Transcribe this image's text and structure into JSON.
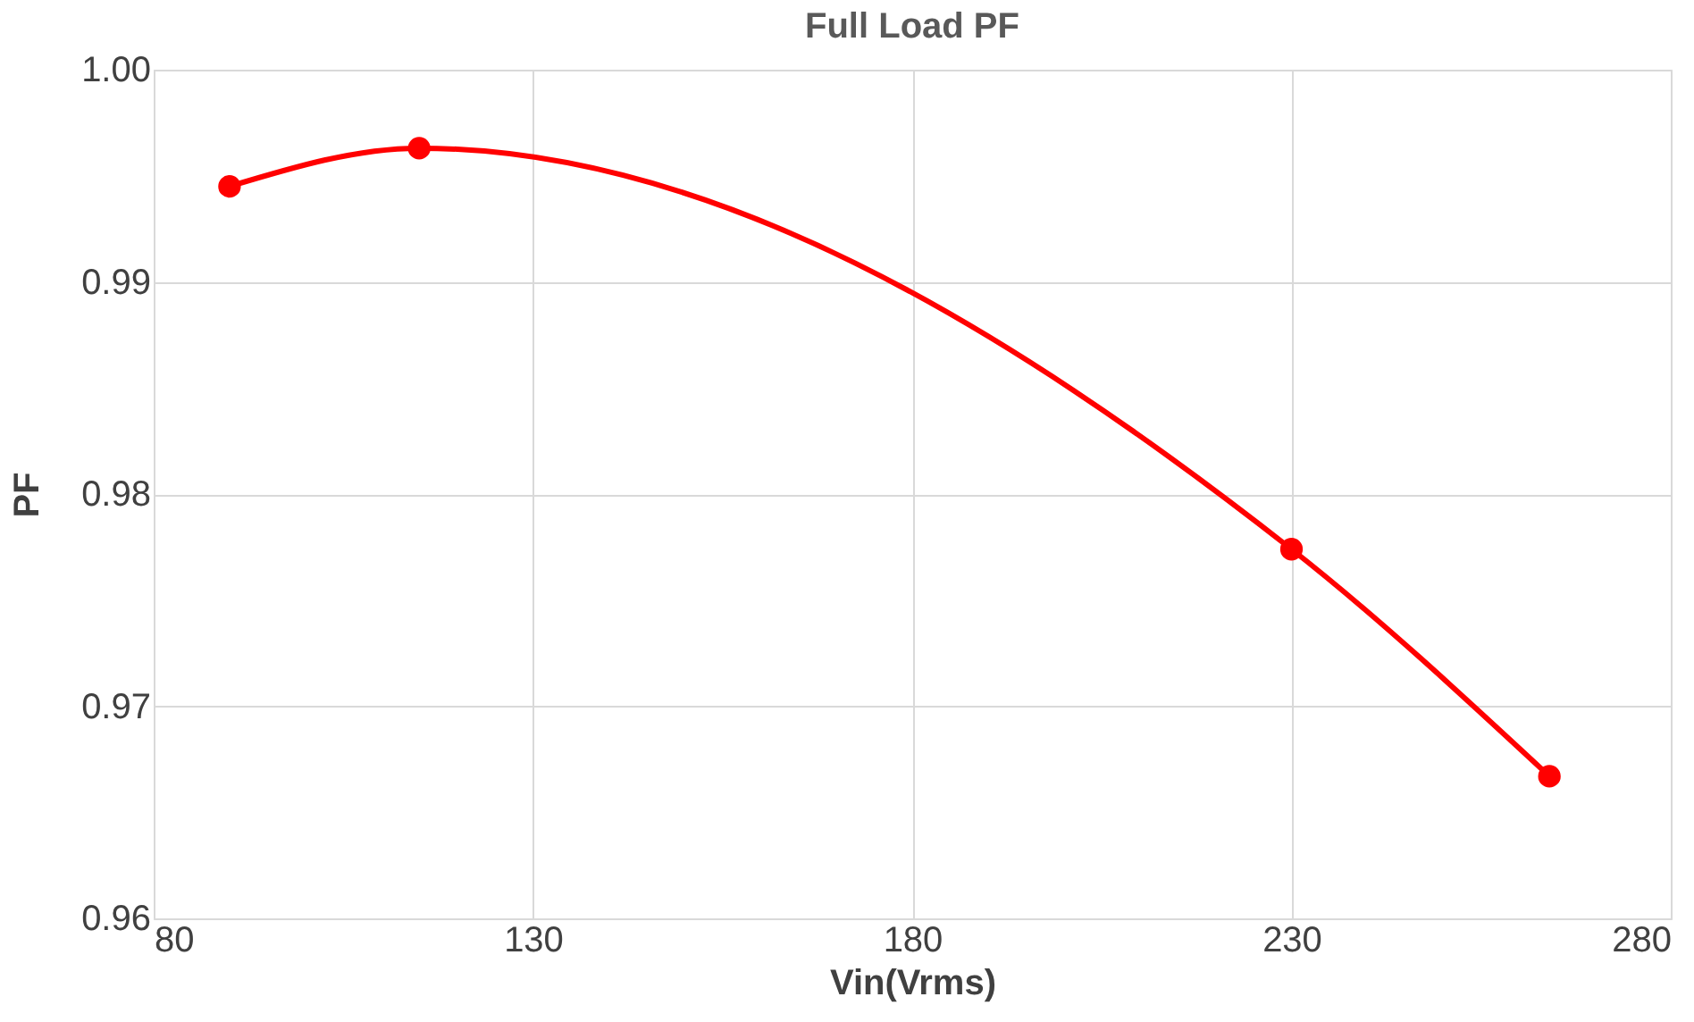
{
  "chart_data": {
    "type": "line",
    "title": "Full Load  PF",
    "xlabel": "Vin(Vrms)",
    "ylabel": "PF",
    "x": [
      90,
      115,
      230,
      264
    ],
    "series": [
      {
        "color": "#ff0000",
        "values": [
          0.9945,
          0.9963,
          0.9774,
          0.9667
        ]
      }
    ],
    "xlim": [
      80,
      280
    ],
    "xticks": [
      80,
      130,
      180,
      230,
      280
    ],
    "ylim": [
      0.96,
      1.0
    ],
    "yticks": [
      {
        "value": 0.96,
        "label": "0.96"
      },
      {
        "value": 0.97,
        "label": "0.97"
      },
      {
        "value": 0.98,
        "label": "0.98"
      },
      {
        "value": 0.99,
        "label": "0.99"
      },
      {
        "value": 1.0,
        "label": "1.00"
      }
    ],
    "grid": true,
    "marker": "circle",
    "line_style": "solid"
  }
}
